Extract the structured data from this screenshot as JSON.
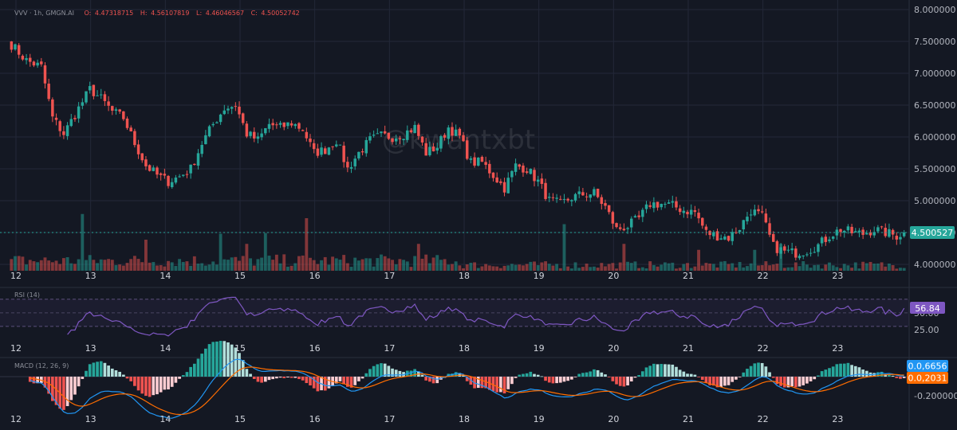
{
  "header": {
    "symbol": "VVV · 1h, GMGN.AI",
    "o_label": "O:",
    "o_value": "4.47318715",
    "h_label": "H:",
    "h_value": "4.56107819",
    "l_label": "L:",
    "l_value": "4.46046567",
    "c_label": "C:",
    "c_value": "4.50052742"
  },
  "watermark": "@kwantxbt",
  "colors": {
    "background": "#141823",
    "up": "#26a69a",
    "down": "#ef5350",
    "rsi": "#7e57c2",
    "macd": "#2196f3",
    "signal": "#ff6d00",
    "grid": "#232838"
  },
  "chart_data": [
    {
      "type": "candlestick",
      "name": "price",
      "x_ticks": [
        "12",
        "13",
        "14",
        "15",
        "16",
        "17",
        "18",
        "19",
        "20",
        "21",
        "22",
        "23"
      ],
      "y_ticks": [
        "8.000000",
        "7.500000",
        "7.000000",
        "6.500000",
        "6.000000",
        "5.500000",
        "5.000000",
        "4.500000",
        "4.000000"
      ],
      "ylim": [
        3.9,
        8.05
      ],
      "last_price": 4.500527,
      "last_price_label": "4.500527",
      "close_path": [
        [
          0,
          7.45
        ],
        [
          4,
          7.2
        ],
        [
          8,
          7.1
        ],
        [
          11,
          6.3
        ],
        [
          14,
          6.05
        ],
        [
          18,
          6.45
        ],
        [
          21,
          6.75
        ],
        [
          24,
          6.6
        ],
        [
          27,
          6.4
        ],
        [
          30,
          6.3
        ],
        [
          33,
          5.9
        ],
        [
          36,
          5.55
        ],
        [
          39,
          5.4
        ],
        [
          42,
          5.3
        ],
        [
          45,
          5.38
        ],
        [
          48,
          5.5
        ],
        [
          51,
          5.9
        ],
        [
          54,
          6.2
        ],
        [
          57,
          6.45
        ],
        [
          60,
          6.5
        ],
        [
          63,
          6.05
        ],
        [
          66,
          5.95
        ],
        [
          69,
          6.2
        ],
        [
          72,
          6.15
        ],
        [
          75,
          6.22
        ],
        [
          78,
          6.12
        ],
        [
          81,
          5.75
        ],
        [
          84,
          5.8
        ],
        [
          87,
          5.95
        ],
        [
          90,
          5.5
        ],
        [
          93,
          5.75
        ],
        [
          96,
          5.95
        ],
        [
          99,
          6.02
        ],
        [
          102,
          6.0
        ],
        [
          105,
          6.05
        ],
        [
          108,
          6.15
        ],
        [
          111,
          5.75
        ],
        [
          114,
          5.85
        ],
        [
          117,
          6.15
        ],
        [
          120,
          6.0
        ],
        [
          123,
          5.6
        ],
        [
          126,
          5.6
        ],
        [
          129,
          5.4
        ],
        [
          132,
          5.2
        ],
        [
          135,
          5.55
        ],
        [
          138,
          5.5
        ],
        [
          141,
          5.3
        ],
        [
          144,
          5.0
        ],
        [
          147,
          4.95
        ],
        [
          150,
          5.05
        ],
        [
          153,
          5.1
        ],
        [
          156,
          5.12
        ],
        [
          159,
          4.9
        ],
        [
          162,
          4.55
        ],
        [
          165,
          4.6
        ],
        [
          168,
          4.72
        ],
        [
          171,
          4.95
        ],
        [
          174,
          4.95
        ],
        [
          177,
          4.92
        ],
        [
          180,
          4.85
        ],
        [
          183,
          4.82
        ],
        [
          186,
          4.5
        ],
        [
          189,
          4.45
        ],
        [
          192,
          4.42
        ],
        [
          195,
          4.58
        ],
        [
          198,
          4.85
        ],
        [
          201,
          4.75
        ],
        [
          204,
          4.28
        ],
        [
          207,
          4.2
        ],
        [
          210,
          4.18
        ],
        [
          213,
          4.22
        ],
        [
          216,
          4.3
        ],
        [
          219,
          4.45
        ],
        [
          222,
          4.55
        ],
        [
          225,
          4.5
        ],
        [
          228,
          4.48
        ],
        [
          231,
          4.55
        ],
        [
          234,
          4.5
        ],
        [
          237,
          4.45
        ],
        [
          239,
          4.5
        ]
      ],
      "volume_spikes": [
        [
          19,
          0.95
        ],
        [
          36,
          0.52
        ],
        [
          56,
          0.62
        ],
        [
          63,
          0.45
        ],
        [
          68,
          0.63
        ],
        [
          79,
          0.88
        ],
        [
          109,
          0.45
        ],
        [
          148,
          0.78
        ],
        [
          164,
          0.45
        ],
        [
          184,
          0.35
        ],
        [
          199,
          0.35
        ],
        [
          206,
          0.45
        ]
      ]
    },
    {
      "type": "line",
      "name": "RSI",
      "label": "RSI (14)",
      "y_ticks": [
        "50.00",
        "25.00"
      ],
      "ylim": [
        10,
        85
      ],
      "bands": [
        30,
        70
      ],
      "last_value": 56.84,
      "last_value_label": "56.84"
    },
    {
      "type": "macd",
      "name": "MACD",
      "label": "MACD (12, 26, 9)",
      "y_ticks": [
        "-0.200000"
      ],
      "ylim": [
        -0.3,
        0.15
      ],
      "macd_label": "0.0,6656",
      "signal_label": "0.0,2031"
    }
  ]
}
